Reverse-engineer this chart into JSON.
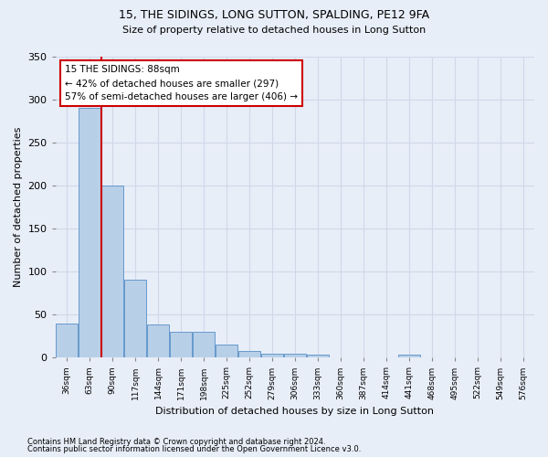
{
  "title1": "15, THE SIDINGS, LONG SUTTON, SPALDING, PE12 9FA",
  "title2": "Size of property relative to detached houses in Long Sutton",
  "xlabel": "Distribution of detached houses by size in Long Sutton",
  "ylabel": "Number of detached properties",
  "footnote1": "Contains HM Land Registry data © Crown copyright and database right 2024.",
  "footnote2": "Contains public sector information licensed under the Open Government Licence v3.0.",
  "categories": [
    "36sqm",
    "63sqm",
    "90sqm",
    "117sqm",
    "144sqm",
    "171sqm",
    "198sqm",
    "225sqm",
    "252sqm",
    "279sqm",
    "306sqm",
    "333sqm",
    "360sqm",
    "387sqm",
    "414sqm",
    "441sqm",
    "468sqm",
    "495sqm",
    "522sqm",
    "549sqm",
    "576sqm"
  ],
  "values": [
    40,
    290,
    200,
    90,
    38,
    30,
    30,
    15,
    8,
    4,
    5,
    3,
    0,
    0,
    0,
    3,
    0,
    0,
    0,
    0,
    0
  ],
  "bar_color": "#b8cfe8",
  "bar_edge_color": "#6699cc",
  "grid_color": "#d0d8e8",
  "bg_color": "#e8eef8",
  "property_line_x": 1.5,
  "annotation_line1": "15 THE SIDINGS: 88sqm",
  "annotation_line2": "← 42% of detached houses are smaller (297)",
  "annotation_line3": "57% of semi-detached houses are larger (406) →",
  "annotation_box_color": "#ffffff",
  "annotation_box_edge": "#cc0000",
  "property_line_color": "#cc0000",
  "ylim": [
    0,
    350
  ],
  "yticks": [
    0,
    50,
    100,
    150,
    200,
    250,
    300,
    350
  ]
}
